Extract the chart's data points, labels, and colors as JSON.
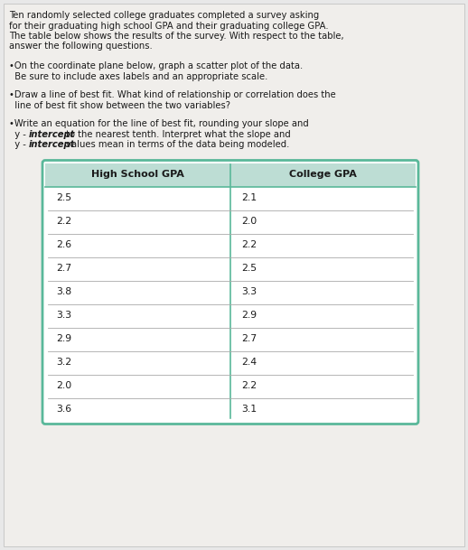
{
  "col_headers": [
    "High School GPA",
    "College GPA"
  ],
  "hs_gpa": [
    "2.5",
    "2.2",
    "2.6",
    "2.7",
    "3.8",
    "3.3",
    "2.9",
    "3.2",
    "2.0",
    "3.6"
  ],
  "col_gpa": [
    "2.1",
    "2.0",
    "2.2",
    "2.5",
    "3.3",
    "2.9",
    "2.7",
    "2.4",
    "2.2",
    "3.1"
  ],
  "bg_color": "#e8e8e8",
  "page_bg": "#f0eeeb",
  "table_border_color": "#5ab89a",
  "header_bg": "#bdddd4",
  "text_color": "#1a1a1a",
  "font_size_title": 7.2,
  "font_size_bullet": 7.2,
  "font_size_table_header": 8.0,
  "font_size_table_data": 7.8,
  "title_lines": [
    "Ten randomly selected college graduates completed a survey asking",
    "for their graduating high school GPA and their graduating college GPA.",
    "The table below shows the results of the survey. With respect to the table,",
    "answer the following questions."
  ],
  "b1_line1": "•On the coordinate plane below, graph a scatter plot of the data.",
  "b1_line2": "  Be sure to include axes labels and an appropriate scale.",
  "b2_line1": "•Draw a line of best fit. What kind of relationship or correlation does the",
  "b2_line2": "  line of best fit show between the two variables?",
  "b3_line1": "•Write an equation for the line of best fit, rounding your slope and",
  "b3_line2_pre": "  y - ",
  "b3_line2_bold": "intercept",
  "b3_line2_post": " to the nearest tenth. Interpret what the slope and",
  "b3_line3_pre": "  y - ",
  "b3_line3_bold": "intercept",
  "b3_line3_post": " values mean in terms of the data being modeled."
}
